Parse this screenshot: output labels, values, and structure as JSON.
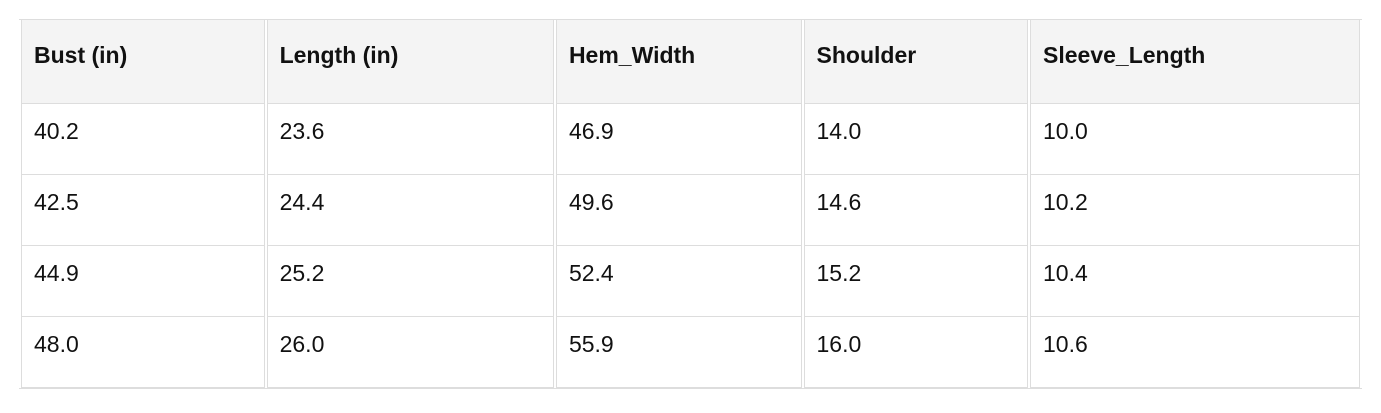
{
  "table": {
    "headers": [
      "Bust (in)",
      "Length (in)",
      "Hem_Width",
      "Shoulder",
      "Sleeve_Length"
    ],
    "rows": [
      [
        "40.2",
        "23.6",
        "46.9",
        "14.0",
        "10.0"
      ],
      [
        "42.5",
        "24.4",
        "49.6",
        "14.6",
        "10.2"
      ],
      [
        "44.9",
        "25.2",
        "52.4",
        "15.2",
        "10.4"
      ],
      [
        "48.0",
        "26.0",
        "55.9",
        "16.0",
        "10.6"
      ]
    ]
  }
}
